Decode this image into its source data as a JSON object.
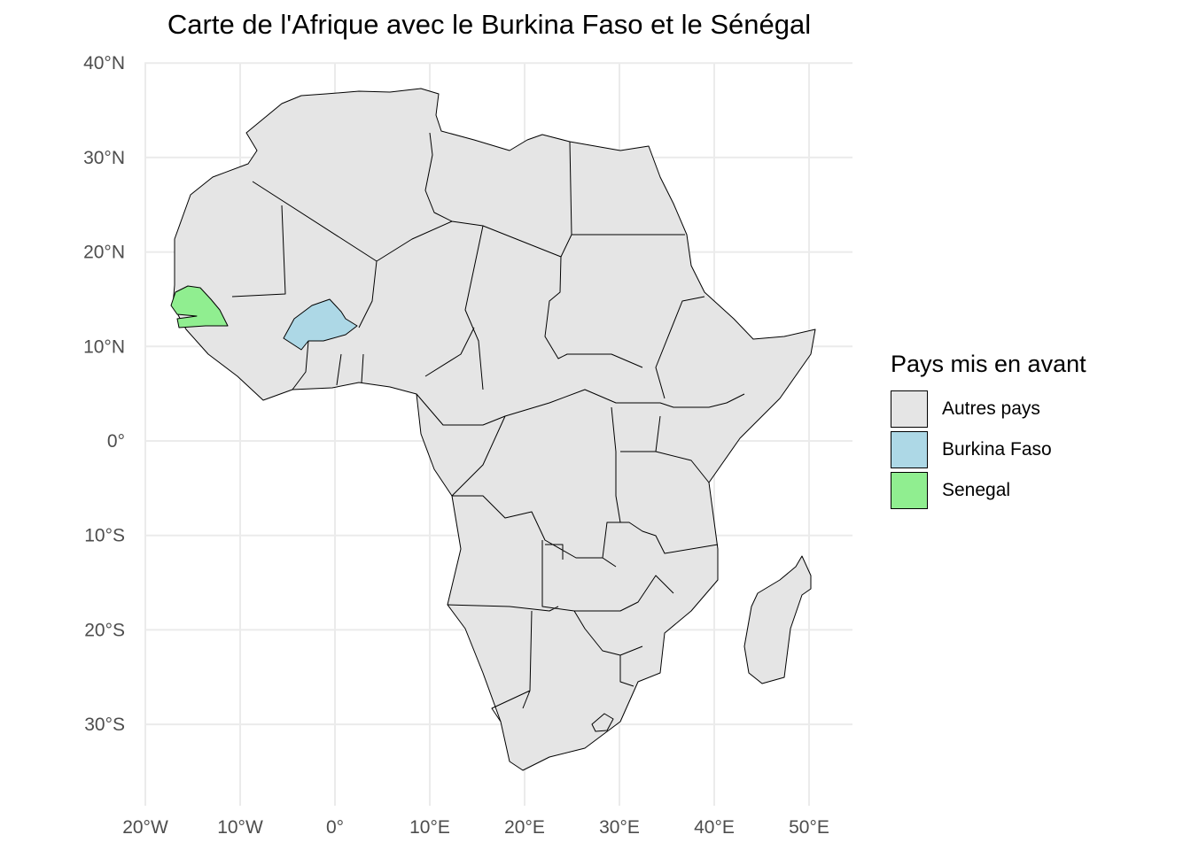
{
  "title": "Carte de l'Afrique avec le Burkina Faso et le Sénégal",
  "axes": {
    "x_ticks": [
      {
        "value": -20,
        "label": "20°W"
      },
      {
        "value": -10,
        "label": "10°W"
      },
      {
        "value": 0,
        "label": "0°"
      },
      {
        "value": 10,
        "label": "10°E"
      },
      {
        "value": 20,
        "label": "20°E"
      },
      {
        "value": 30,
        "label": "30°E"
      },
      {
        "value": 40,
        "label": "40°E"
      },
      {
        "value": 50,
        "label": "50°E"
      }
    ],
    "y_ticks": [
      {
        "value": 40,
        "label": "40°N"
      },
      {
        "value": 30,
        "label": "30°N"
      },
      {
        "value": 20,
        "label": "20°N"
      },
      {
        "value": 10,
        "label": "10°N"
      },
      {
        "value": 0,
        "label": "0°"
      },
      {
        "value": -10,
        "label": "10°S"
      },
      {
        "value": -20,
        "label": "20°S"
      },
      {
        "value": -30,
        "label": "30°S"
      }
    ],
    "lon_range": [
      -20,
      50
    ],
    "lat_range": [
      -35,
      40
    ]
  },
  "legend": {
    "title": "Pays mis en avant",
    "items": [
      {
        "label": "Autres pays",
        "color": "#e5e5e5"
      },
      {
        "label": "Burkina Faso",
        "color": "#add8e6"
      },
      {
        "label": "Senegal",
        "color": "#90ee90"
      }
    ]
  },
  "colors": {
    "other": "#e5e5e5",
    "burkina": "#add8e6",
    "senegal": "#90ee90",
    "border": "#000000",
    "grid": "#ebebeb"
  }
}
